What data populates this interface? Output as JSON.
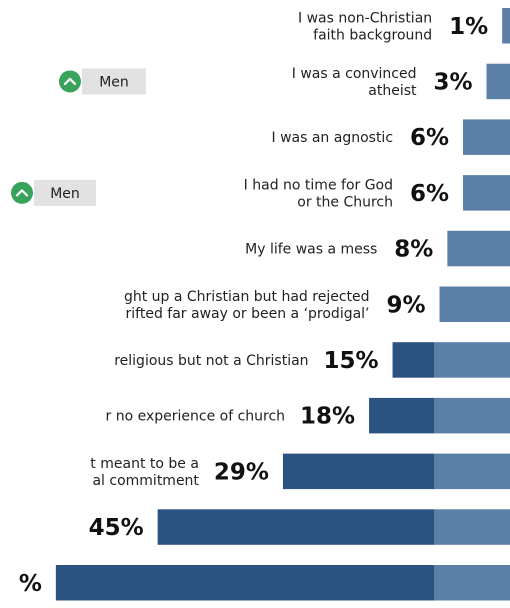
{
  "chart_data": {
    "type": "bar",
    "orientation": "horizontal",
    "categories": [
      [
        "I was non-Christian",
        "faith background"
      ],
      [
        "I was a convinced",
        "atheist"
      ],
      [
        "I was an agnostic"
      ],
      [
        "I had no time for God",
        "or the Church"
      ],
      [
        "My life was a mess"
      ],
      [
        "ght up a Christian but had rejected",
        "rifted far away or been a ‘prodigal’"
      ],
      [
        "religious but not a Christian"
      ],
      [
        "r no experience of church"
      ],
      [
        "t meant to be a",
        "al commitment"
      ],
      [
        ""
      ],
      [
        ""
      ]
    ],
    "values": [
      1,
      3,
      6,
      6,
      8,
      9,
      15,
      18,
      29,
      45,
      58
    ],
    "value_labels": [
      "1%",
      "3%",
      "6%",
      "6%",
      "8%",
      "9%",
      "15%",
      "18%",
      "29%",
      "45%",
      "%"
    ],
    "badges": [
      {
        "row": 1,
        "text": "Men",
        "icon": "chevron-up-icon"
      },
      {
        "row": 3,
        "text": "Men",
        "icon": "chevron-up-icon"
      }
    ],
    "xlim": [
      0,
      58
    ],
    "grid": false,
    "legend": "none"
  },
  "colors": {
    "bar": "#2c5282",
    "bar_light": "#5b7fa6",
    "badge_bg": "#e2e2e2",
    "badge_icon": "#3aa35b"
  }
}
